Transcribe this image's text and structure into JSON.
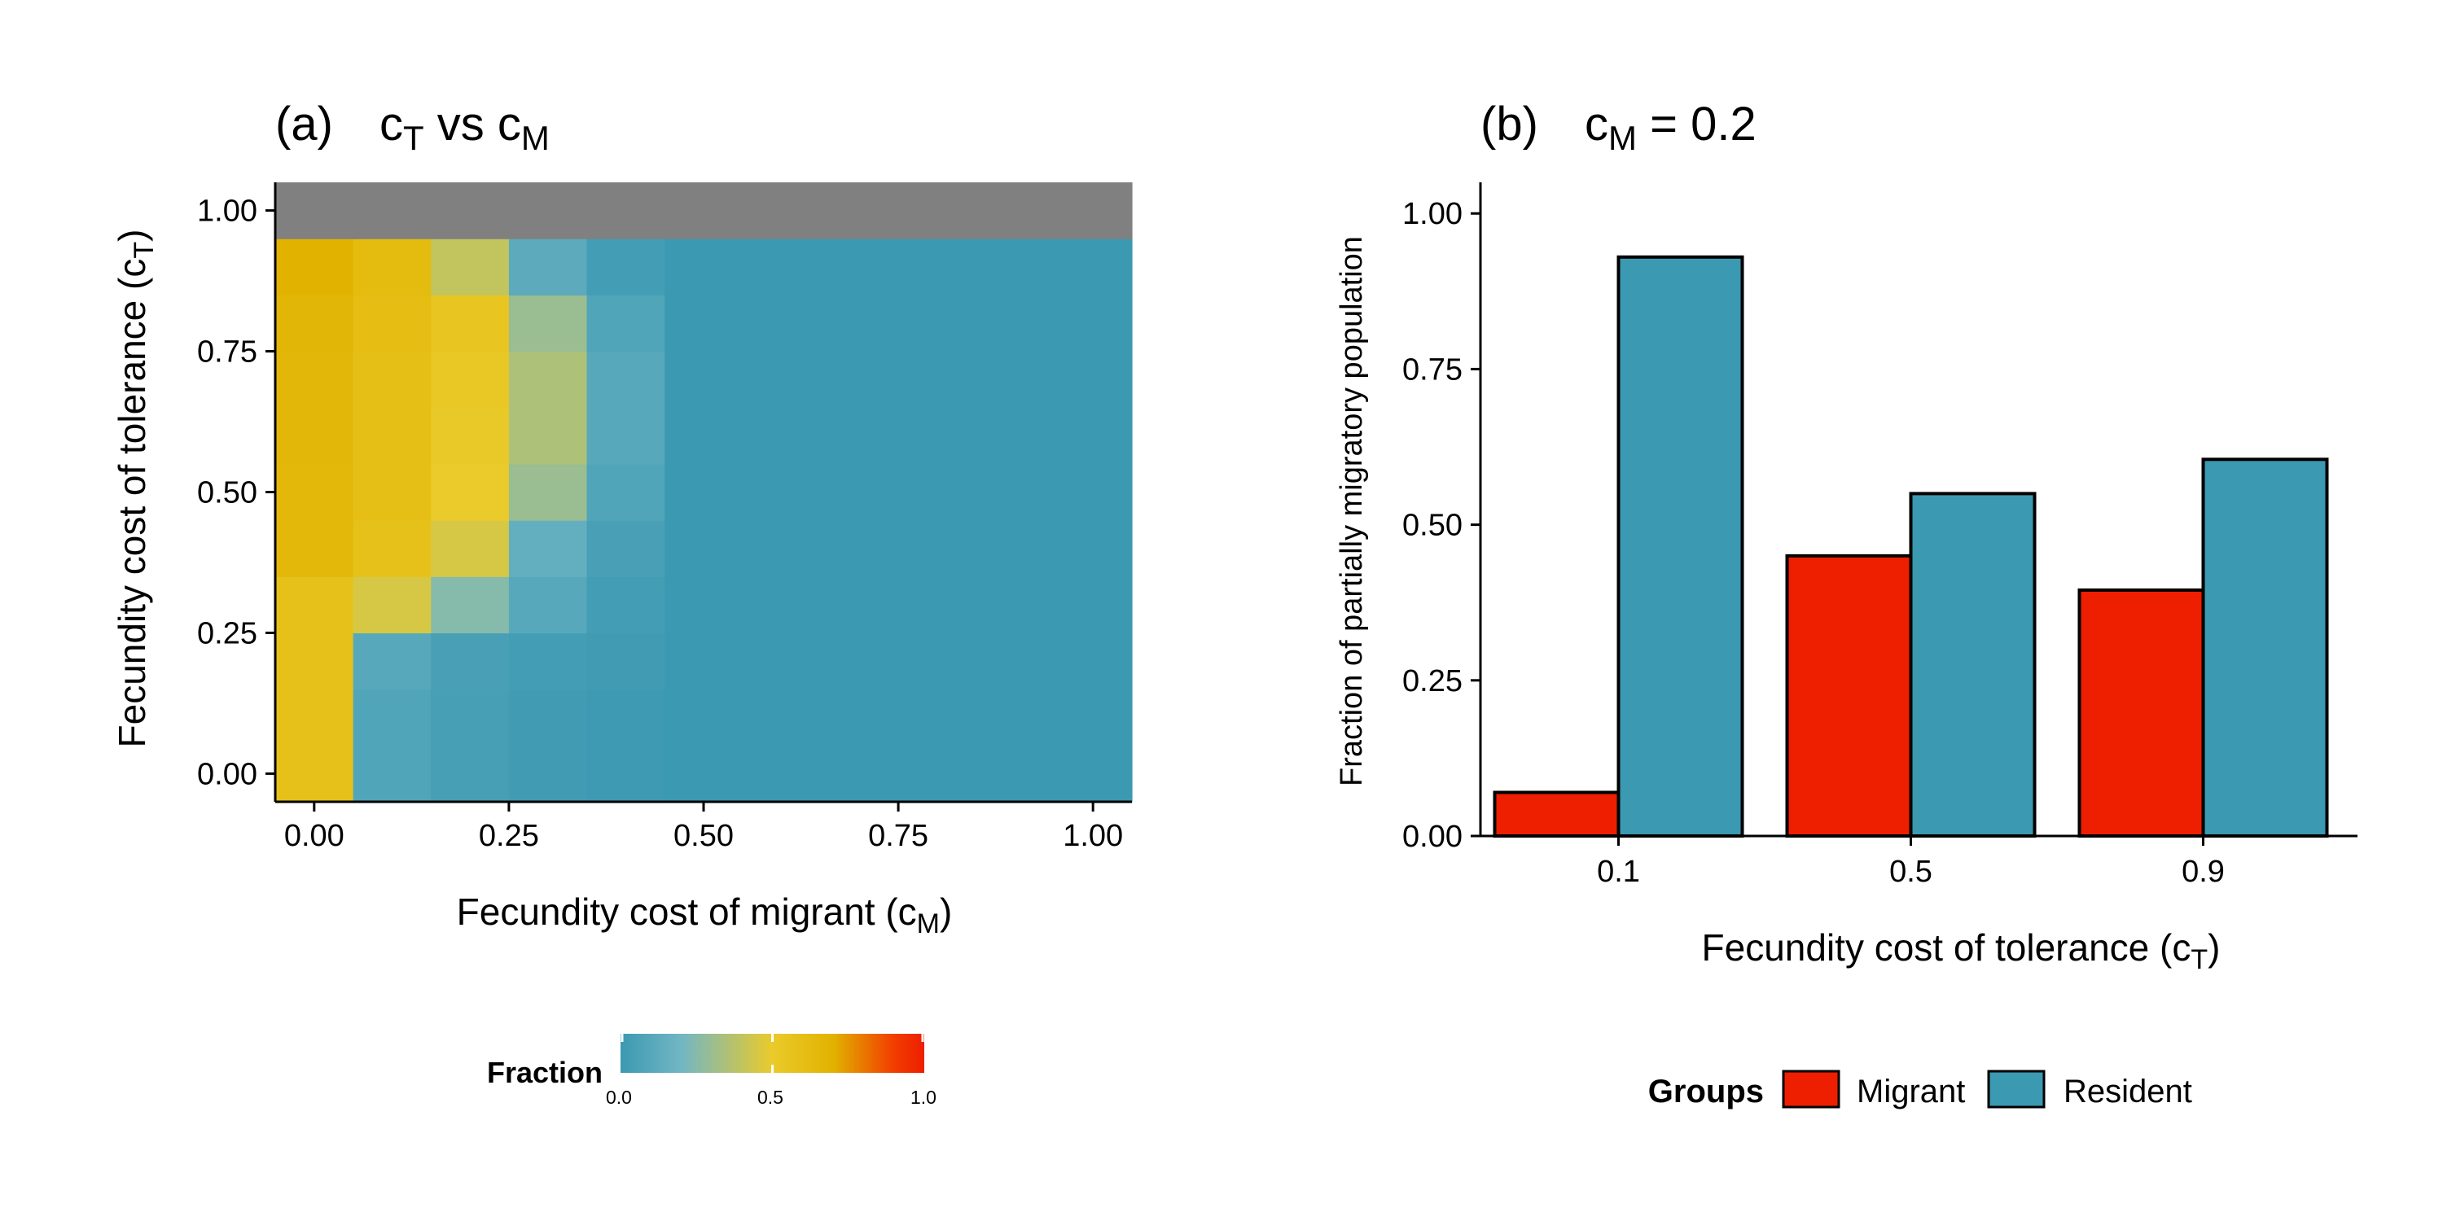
{
  "panel_a": {
    "tag": "(a)",
    "title": {
      "c1": "c",
      "s1": "T",
      "mid": " vs ",
      "c2": "c",
      "s2": "M"
    },
    "xlabel": {
      "main": "Fecundity cost of migrant (c",
      "sub": "M",
      "close": ")"
    },
    "ylabel": {
      "main": "Fecundity cost of tolerance (c",
      "sub": "T",
      "close": ")"
    },
    "legend": {
      "title": "Fraction",
      "ticks": [
        "0.0",
        "0.5",
        "1.0"
      ]
    }
  },
  "panel_b": {
    "tag": "(b)",
    "title": {
      "c": "c",
      "s": "M",
      "rest": " = 0.2"
    },
    "xlabel": {
      "main": "Fecundity cost of tolerance (c",
      "sub": "T",
      "close": ")"
    },
    "ylabel": "Fraction of partially migratory population",
    "legend": {
      "title": "Groups"
    }
  },
  "colors": {
    "migrant": "#EE1E00",
    "resident": "#3B99B1",
    "na_gray": "#808080",
    "gradient": [
      "#3B99B1",
      "#72B6C4",
      "#EACB2B",
      "#E1B200",
      "#F23D00",
      "#EE1E00"
    ]
  },
  "chart_data": [
    {
      "type": "heatmap",
      "title": "(a) cT vs cM",
      "xlabel": "Fecundity cost of migrant (cM)",
      "ylabel": "Fecundity cost of tolerance (cT)",
      "x": [
        0.0,
        0.1,
        0.2,
        0.3,
        0.4,
        0.5,
        0.6,
        0.7,
        0.8,
        0.9,
        1.0
      ],
      "y": [
        0.0,
        0.1,
        0.2,
        0.3,
        0.4,
        0.5,
        0.6,
        0.7,
        0.8,
        0.9,
        1.0
      ],
      "xlim": [
        -0.05,
        1.05
      ],
      "ylim": [
        -0.05,
        1.05
      ],
      "xticks": [
        "0.00",
        "0.25",
        "0.50",
        "0.75",
        "1.00"
      ],
      "yticks": [
        "0.00",
        "0.25",
        "0.50",
        "0.75",
        "1.00"
      ],
      "z_by_row_y": [
        [
          0.58,
          0.08,
          0.04,
          0.02,
          0.01,
          0,
          0,
          0,
          0,
          0,
          0
        ],
        [
          0.58,
          0.08,
          0.04,
          0.02,
          0.01,
          0,
          0,
          0,
          0,
          0,
          0
        ],
        [
          0.58,
          0.1,
          0.05,
          0.03,
          0.02,
          0,
          0,
          0,
          0,
          0,
          0
        ],
        [
          0.58,
          0.45,
          0.25,
          0.1,
          0.03,
          0,
          0,
          0,
          0,
          0,
          0
        ],
        [
          0.65,
          0.58,
          0.45,
          0.15,
          0.05,
          0,
          0,
          0,
          0,
          0,
          0
        ],
        [
          0.65,
          0.6,
          0.5,
          0.3,
          0.08,
          0,
          0,
          0,
          0,
          0,
          0
        ],
        [
          0.66,
          0.6,
          0.52,
          0.35,
          0.1,
          0,
          0,
          0,
          0,
          0,
          0
        ],
        [
          0.66,
          0.6,
          0.53,
          0.35,
          0.1,
          0,
          0,
          0,
          0,
          0,
          0
        ],
        [
          0.67,
          0.61,
          0.55,
          0.3,
          0.08,
          0,
          0,
          0,
          0,
          0,
          0
        ],
        [
          0.7,
          0.63,
          0.4,
          0.12,
          0.03,
          0,
          0,
          0,
          0,
          0,
          0
        ],
        [
          null,
          null,
          null,
          null,
          null,
          null,
          null,
          null,
          null,
          null,
          null
        ]
      ],
      "legend_title": "Fraction",
      "colorbar_range": [
        0,
        1
      ],
      "legend": "bottom"
    },
    {
      "type": "bar",
      "title": "(b) cM = 0.2",
      "xlabel": "Fecundity cost of tolerance (cT)",
      "ylabel": "Fraction of partially migratory population",
      "categories": [
        "0.1",
        "0.5",
        "0.9"
      ],
      "series": [
        {
          "name": "Migrant",
          "values": [
            0.07,
            0.45,
            0.395
          ]
        },
        {
          "name": "Resident",
          "values": [
            0.93,
            0.55,
            0.605
          ]
        }
      ],
      "ylim": [
        0,
        1.05
      ],
      "yticks": [
        "0.00",
        "0.25",
        "0.50",
        "0.75",
        "1.00"
      ],
      "legend_title": "Groups",
      "legend": "bottom",
      "grid": false
    }
  ]
}
